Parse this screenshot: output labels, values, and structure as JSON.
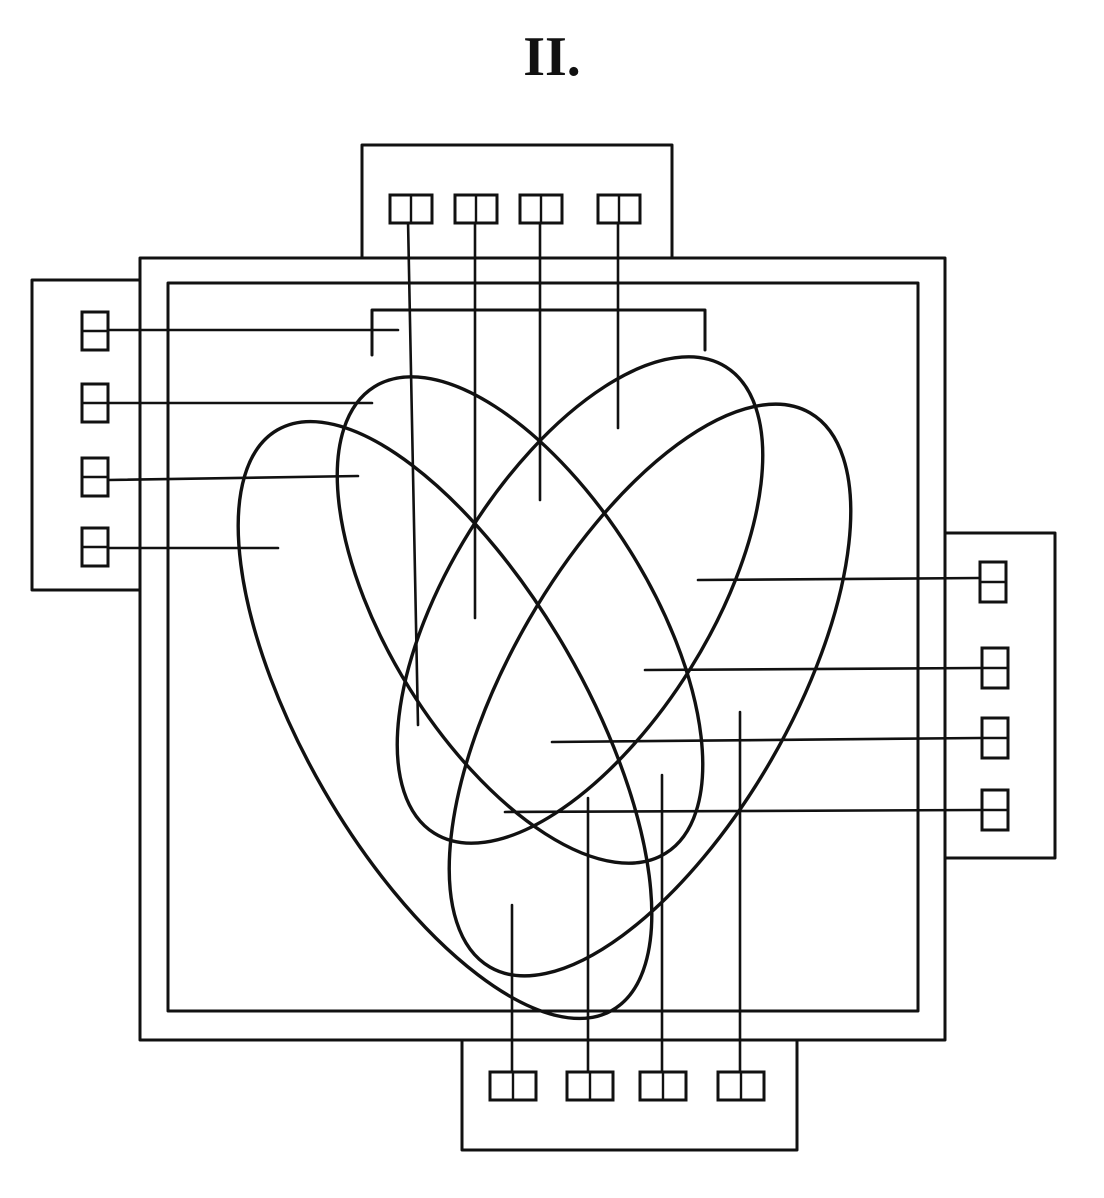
{
  "figure": {
    "title": "II."
  }
}
